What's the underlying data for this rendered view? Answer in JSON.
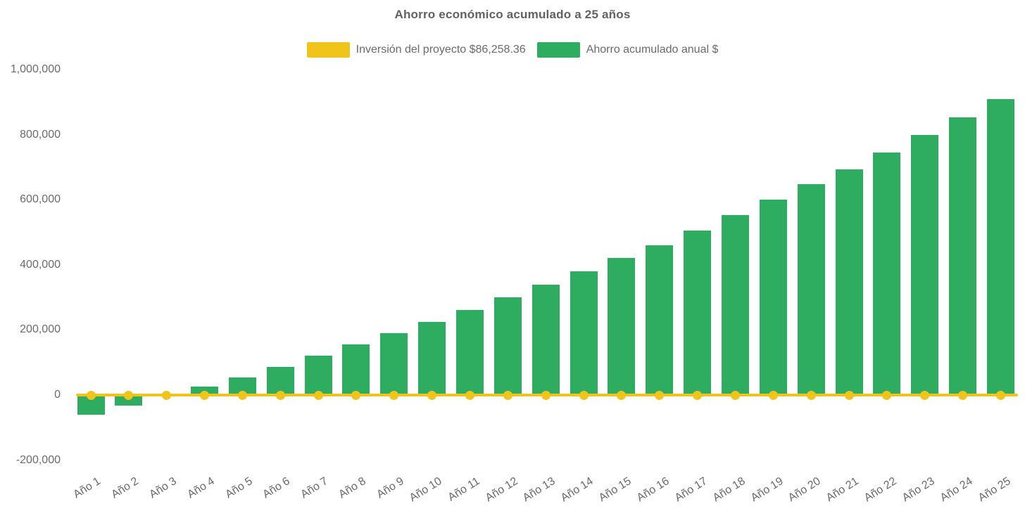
{
  "title": "Ahorro económico acumulado a 25 años",
  "legend": {
    "items": [
      {
        "label": "Inversión del proyecto $86,258.36",
        "color": "#f0c41b"
      },
      {
        "label": "Ahorro acumulado anual $",
        "color": "#2ead61"
      }
    ]
  },
  "colors": {
    "bar_green": "#2ead61",
    "line_yellow": "#f0c41b",
    "axis_text": "#6a6a6a",
    "title_text": "#616161",
    "background": "#ffffff"
  },
  "chart_data": {
    "type": "bar",
    "title": "Ahorro económico acumulado a 25 años",
    "categories": [
      "Año 1",
      "Año 2",
      "Año 3",
      "Año 4",
      "Año 5",
      "Año 6",
      "Año 7",
      "Año 8",
      "Año 9",
      "Año 10",
      "Año 11",
      "Año 12",
      "Año 13",
      "Año 14",
      "Año 15",
      "Año 16",
      "Año 17",
      "Año 18",
      "Año 19",
      "Año 20",
      "Año 21",
      "Año 22",
      "Año 23",
      "Año 24",
      "Año 25"
    ],
    "series": [
      {
        "name": "Ahorro acumulado anual $",
        "type": "bar",
        "color": "#2ead61",
        "values": [
          -60000,
          -33000,
          -3000,
          26000,
          55000,
          86000,
          120000,
          156000,
          190000,
          224000,
          261000,
          300000,
          338000,
          379000,
          420000,
          461000,
          506000,
          553000,
          600000,
          647000,
          694000,
          746000,
          800000,
          853000,
          910000
        ]
      },
      {
        "name": "Inversión del proyecto $86,258.36",
        "type": "line",
        "color": "#f0c41b",
        "marker": "circle",
        "line_value": 0
      }
    ],
    "xlabel": "",
    "ylabel": "",
    "ylim": [
      -200000,
      1000000
    ],
    "ytick_values": [
      1000000,
      800000,
      600000,
      400000,
      200000,
      0,
      -200000
    ],
    "ytick_labels": [
      "1,000,000",
      "800,000",
      "600,000",
      "400,000",
      "200,000",
      "0",
      "-200,000"
    ],
    "grid": false,
    "legend_position": "top-center",
    "x_label_rotation_deg": -32
  }
}
